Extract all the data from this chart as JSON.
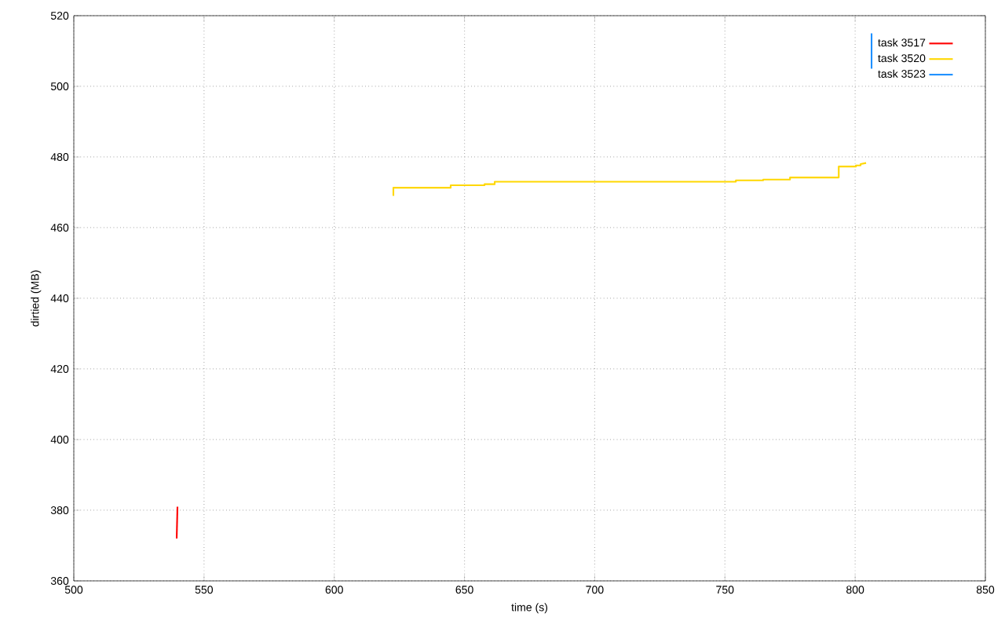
{
  "chart_data": {
    "type": "line",
    "xlabel": "time (s)",
    "ylabel": "dirtied (MB)",
    "xlim": [
      500,
      850
    ],
    "ylim": [
      360,
      520
    ],
    "xticks": [
      500,
      550,
      600,
      650,
      700,
      750,
      800,
      850
    ],
    "yticks": [
      360,
      380,
      400,
      420,
      440,
      460,
      480,
      500,
      520
    ],
    "grid": true,
    "legend": "top right",
    "line_style": "solid",
    "marker": "none",
    "series": [
      {
        "name": "task 3517",
        "color": "#ff0000",
        "x": [
          539.5,
          539.8
        ],
        "values": [
          372,
          381
        ]
      },
      {
        "name": "task 3520",
        "color": "#ffd700",
        "x": [
          622.7,
          622.7,
          622.7,
          644.7,
          644.7,
          657.7,
          657.7,
          661.6,
          661.6,
          754.2,
          754.2,
          764.7,
          764.7,
          775,
          775,
          793.7,
          793.7,
          800.3,
          800.3,
          802.1,
          802.1,
          804.2
        ],
        "values": [
          469,
          471.3,
          471.3,
          471.3,
          472,
          472,
          472.3,
          472.3,
          473,
          473,
          473.4,
          473.4,
          473.6,
          473.6,
          474.2,
          474.2,
          477.3,
          477.3,
          477.6,
          477.6,
          478,
          478.3
        ]
      },
      {
        "name": "task 3523",
        "color": "#1e90ff",
        "x": [
          806.3,
          806.3
        ],
        "values": [
          505,
          515
        ]
      }
    ]
  }
}
